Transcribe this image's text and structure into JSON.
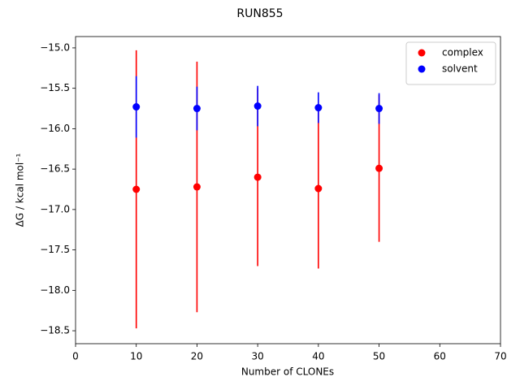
{
  "chart_data": {
    "type": "errorbar_scatter",
    "title": "RUN855",
    "xlabel": "Number of CLONEs",
    "ylabel": "ΔG / kcal mol⁻¹",
    "x": [
      10,
      20,
      30,
      40,
      50
    ],
    "series": [
      {
        "name": "complex",
        "color": "#ff0000",
        "values": [
          -16.75,
          -16.72,
          -16.6,
          -16.74,
          -16.49
        ],
        "errors": [
          1.72,
          1.55,
          1.1,
          0.99,
          0.91
        ]
      },
      {
        "name": "solvent",
        "color": "#0000ff",
        "values": [
          -15.73,
          -15.75,
          -15.72,
          -15.74,
          -15.75
        ],
        "errors": [
          0.38,
          0.27,
          0.25,
          0.19,
          0.19
        ]
      }
    ],
    "xlim": [
      0,
      70
    ],
    "xticks": [
      0,
      10,
      20,
      30,
      40,
      50,
      60,
      70
    ],
    "ylim": [
      -18.66,
      -14.86
    ],
    "yticks": [
      {
        "value": -18.5,
        "label": "−18.5"
      },
      {
        "value": -18.0,
        "label": "−18.0"
      },
      {
        "value": -17.5,
        "label": "−17.5"
      },
      {
        "value": -17.0,
        "label": "−17.0"
      },
      {
        "value": -16.5,
        "label": "−16.5"
      },
      {
        "value": -16.0,
        "label": "−16.0"
      },
      {
        "value": -15.5,
        "label": "−15.5"
      },
      {
        "value": -15.0,
        "label": "−15.0"
      }
    ],
    "legend": "upper right"
  }
}
